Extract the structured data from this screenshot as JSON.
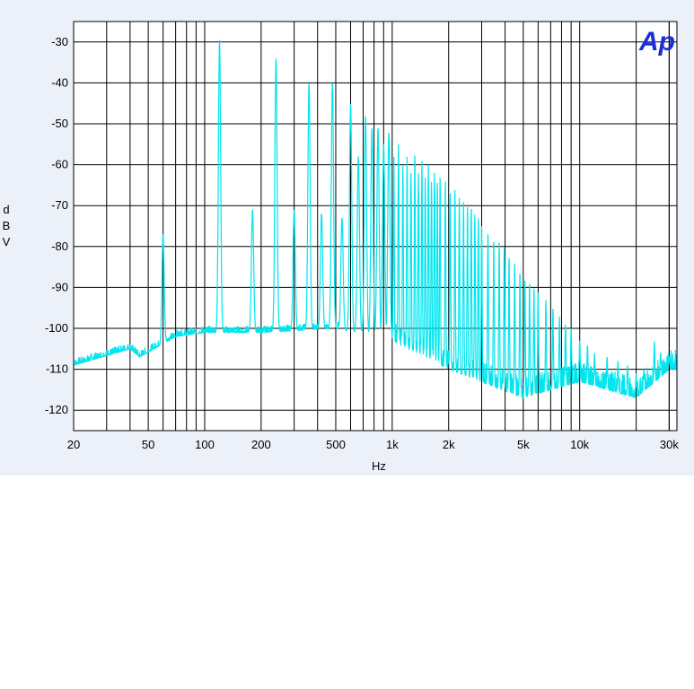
{
  "chart_data": {
    "type": "line",
    "title": "",
    "xlabel": "Hz",
    "ylabel": "dBV",
    "x_scale": "log",
    "xlim": [
      20,
      33000
    ],
    "ylim": [
      -125,
      -25
    ],
    "grid": true,
    "x_ticks": [
      20,
      50,
      100,
      200,
      500,
      1000,
      2000,
      5000,
      10000,
      30000
    ],
    "x_tick_labels": [
      "20",
      "50",
      "100",
      "200",
      "500",
      "1k",
      "2k",
      "5k",
      "10k",
      "30k"
    ],
    "y_ticks": [
      -30,
      -40,
      -50,
      -60,
      -70,
      -80,
      -90,
      -100,
      -110,
      -120
    ],
    "y_tick_labels": [
      "-30",
      "-40",
      "-50",
      "-60",
      "-70",
      "-80",
      "-90",
      "-100",
      "-110",
      "-120"
    ],
    "logo_text": "Ap",
    "series": [
      {
        "color": "#00e5ee",
        "noise_floor": [
          [
            20,
            -109
          ],
          [
            40,
            -105
          ],
          [
            45,
            -107
          ],
          [
            70,
            -102
          ],
          [
            100,
            -101
          ],
          [
            200,
            -101
          ],
          [
            500,
            -100
          ],
          [
            1000,
            -103
          ],
          [
            2000,
            -110
          ],
          [
            5000,
            -117
          ],
          [
            10000,
            -113
          ],
          [
            20000,
            -117
          ],
          [
            30000,
            -110
          ]
        ],
        "peaks": [
          [
            60,
            -77
          ],
          [
            120,
            -29.5
          ],
          [
            180,
            -71
          ],
          [
            240,
            -34
          ],
          [
            300,
            -71
          ],
          [
            360,
            -40
          ],
          [
            420,
            -72
          ],
          [
            480,
            -40
          ],
          [
            540,
            -73
          ],
          [
            600,
            -45
          ],
          [
            660,
            -58
          ],
          [
            720,
            -48
          ],
          [
            780,
            -51
          ],
          [
            840,
            -51
          ],
          [
            900,
            -55
          ],
          [
            960,
            -52
          ],
          [
            1020,
            -58
          ],
          [
            1080,
            -55
          ],
          [
            1140,
            -60
          ],
          [
            1200,
            -58
          ],
          [
            1260,
            -62
          ],
          [
            1320,
            -57
          ],
          [
            1380,
            -62
          ],
          [
            1440,
            -59
          ],
          [
            1500,
            -63
          ],
          [
            1560,
            -60
          ],
          [
            1620,
            -64
          ],
          [
            1680,
            -62
          ],
          [
            1740,
            -64
          ],
          [
            1800,
            -63
          ],
          [
            1920,
            -64
          ],
          [
            2040,
            -67
          ],
          [
            2160,
            -66
          ],
          [
            2280,
            -68
          ],
          [
            2400,
            -69
          ],
          [
            2520,
            -70
          ],
          [
            2640,
            -70
          ],
          [
            2760,
            -72
          ],
          [
            2880,
            -73
          ],
          [
            3000,
            -74
          ],
          [
            3240,
            -76
          ],
          [
            3480,
            -78
          ],
          [
            3720,
            -79
          ],
          [
            3960,
            -80
          ],
          [
            4200,
            -82
          ],
          [
            4500,
            -84
          ],
          [
            4800,
            -86
          ],
          [
            5100,
            -88
          ],
          [
            5400,
            -89
          ],
          [
            5700,
            -90
          ],
          [
            6000,
            -91
          ],
          [
            6600,
            -93
          ],
          [
            7200,
            -95
          ],
          [
            7800,
            -97
          ],
          [
            8400,
            -99
          ],
          [
            9000,
            -100
          ],
          [
            10000,
            -103
          ],
          [
            11000,
            -104
          ],
          [
            12000,
            -106
          ],
          [
            14000,
            -107
          ],
          [
            16000,
            -108
          ],
          [
            18000,
            -109
          ],
          [
            20000,
            -111
          ],
          [
            22000,
            -110
          ],
          [
            25000,
            -103
          ],
          [
            27000,
            -106
          ],
          [
            30000,
            -107
          ]
        ]
      }
    ]
  }
}
